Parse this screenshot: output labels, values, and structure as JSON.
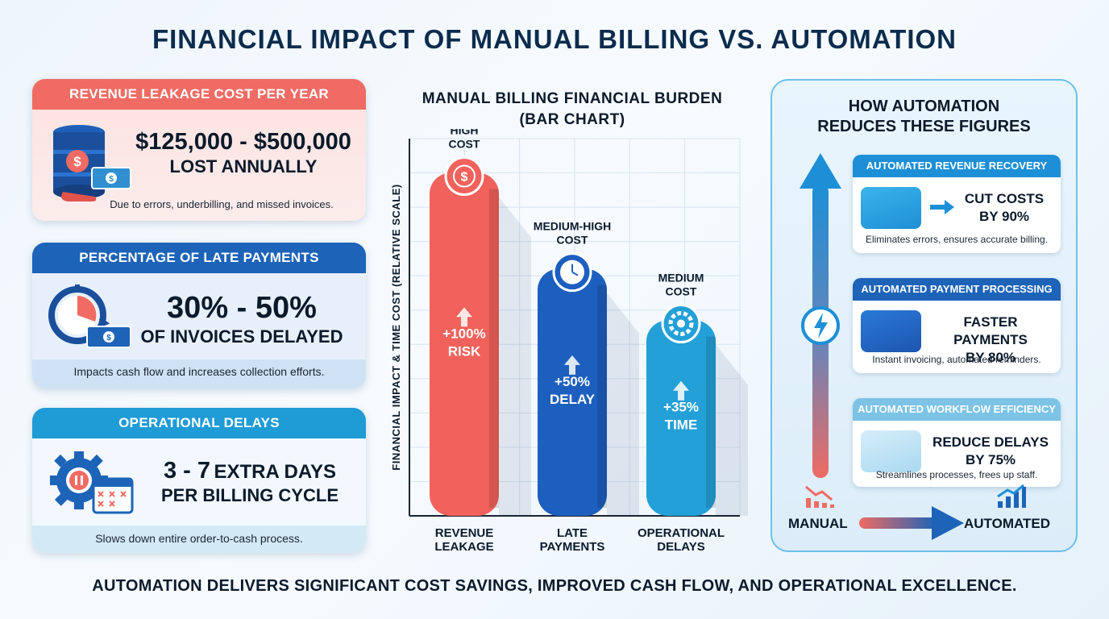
{
  "title": "FINANCIAL IMPACT OF MANUAL BILLING VS. AUTOMATION",
  "footer": "AUTOMATION DELIVERS SIGNIFICANT COST SAVINGS, IMPROVED CASH FLOW, AND OPERATIONAL EXCELLENCE.",
  "left_cards": [
    {
      "header": "REVENUE LEAKAGE COST PER YEAR",
      "value": "$125,000 - $500,000",
      "sub": "LOST ANNUALLY",
      "note": "Due to errors, underbilling, and missed invoices.",
      "icon": "money-barrel-icon"
    },
    {
      "header": "PERCENTAGE OF LATE PAYMENTS",
      "value": "30% - 50%",
      "sub": "OF INVOICES DELAYED",
      "note": "Impacts cash flow and increases collection efforts.",
      "icon": "timer-cash-icon"
    },
    {
      "header": "OPERATIONAL DELAYS",
      "value_num": "3 - 7",
      "value_rest": "EXTRA DAYS",
      "sub": "PER BILLING CYCLE",
      "note": "Slows down entire order-to-cash process.",
      "icon": "gear-calendar-icon"
    }
  ],
  "chart_data": {
    "type": "bar",
    "title": "MANUAL BILLING FINANCIAL BURDEN",
    "subtitle": "(BAR CHART)",
    "ylabel": "FINANCIAL IMPACT & TIME COST (RELATIVE SCALE)",
    "categories": [
      "REVENUE LEAKAGE",
      "LATE PAYMENTS",
      "OPERATIONAL DELAYS"
    ],
    "category_lines": [
      [
        "REVENUE",
        "LEAKAGE"
      ],
      [
        "LATE",
        "PAYMENTS"
      ],
      [
        "OPERATIONAL",
        "DELAYS"
      ]
    ],
    "level_labels": [
      [
        "HIGH",
        "COST"
      ],
      [
        "MEDIUM-HIGH",
        "COST"
      ],
      [
        "MEDIUM",
        "COST"
      ]
    ],
    "bar_labels": [
      [
        "+100%",
        "RISK"
      ],
      [
        "+50%",
        "DELAY"
      ],
      [
        "+35%",
        "TIME"
      ]
    ],
    "values": [
      100,
      72,
      57
    ],
    "ylim": [
      0,
      110
    ],
    "colors": [
      "#f0625b",
      "#1d5fbf",
      "#23a0d8"
    ],
    "icons": [
      "dollar-icon",
      "clock-icon",
      "gear-icon"
    ],
    "grid": true
  },
  "panel": {
    "title_lines": [
      "HOW AUTOMATION",
      "REDUCES THESE FIGURES"
    ],
    "cards": [
      {
        "header": "AUTOMATED REVENUE RECOVERY",
        "line1": "CUT COSTS",
        "line2": "BY 90%",
        "note": "Eliminates errors, ensures accurate billing.",
        "color": "#1d8fd6"
      },
      {
        "header": "AUTOMATED PAYMENT PROCESSING",
        "line1": "FASTER PAYMENTS",
        "line2": "BY 80%",
        "note": "Instant invoicing, automated reminders.",
        "color": "#1d63b8"
      },
      {
        "header": "AUTOMATED WORKFLOW EFFICIENCY",
        "line1": "REDUCE DELAYS",
        "line2": "BY 75%",
        "note": "Streamlines processes, frees up staff.",
        "color": "#7cc3e6"
      }
    ],
    "manual_label": "MANUAL",
    "automated_label": "AUTOMATED"
  }
}
